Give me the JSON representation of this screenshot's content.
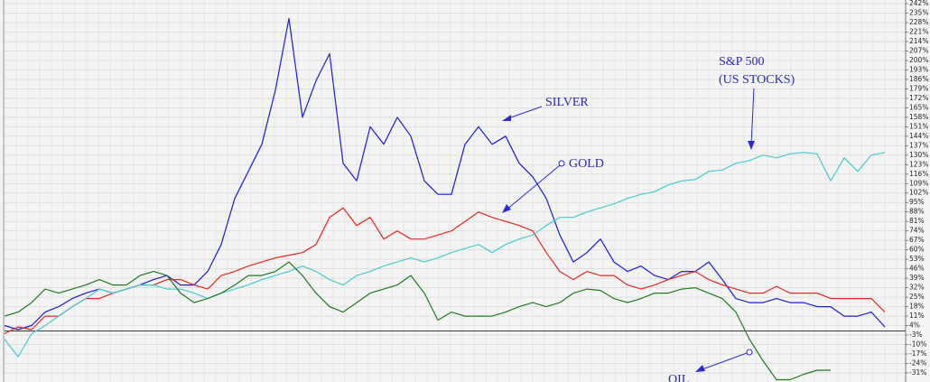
{
  "chart_data": {
    "type": "line",
    "categories": [
      null,
      null,
      null,
      null,
      null,
      null,
      null,
      null,
      null,
      null,
      null,
      null,
      null,
      null,
      null,
      null,
      null,
      null,
      null,
      null,
      null,
      null,
      null,
      null,
      null,
      null,
      null,
      null,
      null,
      null,
      null,
      null,
      null,
      null,
      null,
      null,
      null,
      null,
      null,
      null,
      null,
      null,
      null,
      null,
      null,
      null,
      null,
      null,
      null,
      null,
      null,
      null,
      null,
      null,
      null,
      null,
      null,
      null,
      null,
      null,
      null,
      null,
      null,
      null,
      null,
      null
    ],
    "series": [
      {
        "name": "SILVER",
        "color": "#1c1cd8",
        "values": [
          4,
          1,
          4,
          14,
          18,
          24,
          28,
          31,
          28,
          31,
          34,
          38,
          41,
          34,
          34,
          44,
          64,
          98,
          118,
          138,
          178,
          231,
          158,
          185,
          205,
          124,
          111,
          151,
          138,
          158,
          144,
          111,
          101,
          101,
          138,
          151,
          138,
          144,
          124,
          114,
          98,
          71,
          51,
          58,
          68,
          51,
          44,
          48,
          41,
          38,
          44,
          44,
          51,
          38,
          24,
          21,
          21,
          24,
          21,
          21,
          18,
          18,
          11,
          11,
          14,
          3
        ]
      },
      {
        "name": "GOLD",
        "color": "#e5281e",
        "values": [
          -2,
          3,
          1,
          11,
          11,
          18,
          24,
          24,
          28,
          31,
          34,
          34,
          38,
          38,
          34,
          31,
          41,
          44,
          48,
          51,
          54,
          56,
          58,
          64,
          84,
          91,
          78,
          84,
          68,
          74,
          68,
          68,
          71,
          74,
          81,
          88,
          84,
          81,
          78,
          74,
          58,
          44,
          38,
          44,
          41,
          41,
          34,
          31,
          34,
          38,
          41,
          44,
          38,
          34,
          31,
          28,
          28,
          33,
          28,
          28,
          28,
          24,
          24,
          24,
          24,
          14
        ]
      },
      {
        "name": "S&P 500",
        "color": "#46cccc",
        "values": [
          -6,
          -19,
          -2,
          4,
          11,
          18,
          24,
          31,
          28,
          31,
          34,
          34,
          31,
          31,
          28,
          24,
          28,
          31,
          34,
          38,
          41,
          44,
          48,
          44,
          38,
          34,
          41,
          44,
          48,
          51,
          54,
          51,
          54,
          58,
          61,
          64,
          58,
          64,
          68,
          71,
          78,
          84,
          84,
          88,
          91,
          94,
          98,
          101,
          103,
          108,
          111,
          112,
          118,
          119,
          124,
          126,
          130,
          128,
          131,
          132,
          131,
          111,
          128,
          118,
          130,
          132
        ]
      },
      {
        "name": "OIL",
        "color": "#1f7a1f",
        "values": [
          11,
          14,
          21,
          31,
          28,
          31,
          34,
          38,
          34,
          34,
          41,
          44,
          41,
          28,
          21,
          24,
          28,
          34,
          41,
          41,
          44,
          51,
          41,
          28,
          18,
          14,
          21,
          28,
          31,
          34,
          41,
          28,
          8,
          14,
          11,
          11,
          11,
          14,
          18,
          21,
          18,
          21,
          28,
          31,
          30,
          24,
          21,
          24,
          28,
          28,
          31,
          32,
          28,
          24,
          14,
          -6,
          -22,
          -36,
          -36,
          -32,
          -29,
          -29,
          null,
          null,
          null,
          null
        ]
      }
    ],
    "annotations": [
      "(US STOCKS)"
    ],
    "ylim": [
      -37.7,
      244.7
    ],
    "yticks": [
      {
        "value": 242,
        "label": "242%"
      },
      {
        "value": 235,
        "label": "235%"
      },
      {
        "value": 228,
        "label": "228%"
      },
      {
        "value": 221,
        "label": "221%"
      },
      {
        "value": 214,
        "label": "214%"
      },
      {
        "value": 207,
        "label": "207%"
      },
      {
        "value": 200,
        "label": "200%"
      },
      {
        "value": 193,
        "label": "193%"
      },
      {
        "value": 186,
        "label": "186%"
      },
      {
        "value": 179,
        "label": "179%"
      },
      {
        "value": 172,
        "label": "172%"
      },
      {
        "value": 165,
        "label": "165%"
      },
      {
        "value": 158,
        "label": "158%"
      },
      {
        "value": 151,
        "label": "151%"
      },
      {
        "value": 144,
        "label": "144%"
      },
      {
        "value": 137,
        "label": "137%"
      },
      {
        "value": 130,
        "label": "130%"
      },
      {
        "value": 123,
        "label": "123%"
      },
      {
        "value": 116,
        "label": "116%"
      },
      {
        "value": 109,
        "label": "109%"
      },
      {
        "value": 102,
        "label": "102%"
      },
      {
        "value": 95,
        "label": "95%"
      },
      {
        "value": 88,
        "label": "88%"
      },
      {
        "value": 81,
        "label": "81%"
      },
      {
        "value": 74,
        "label": "74%"
      },
      {
        "value": 67,
        "label": "67%"
      },
      {
        "value": 60,
        "label": "60%"
      },
      {
        "value": 53,
        "label": "53%"
      },
      {
        "value": 46,
        "label": "46%"
      },
      {
        "value": 39,
        "label": "39%"
      },
      {
        "value": 32,
        "label": "32%"
      },
      {
        "value": 25,
        "label": "25%"
      },
      {
        "value": 18,
        "label": "18%"
      },
      {
        "value": 11,
        "label": "11%"
      },
      {
        "value": 4,
        "label": "4%"
      },
      {
        "value": -3,
        "label": "-3%"
      },
      {
        "value": -10,
        "label": "-10%"
      },
      {
        "value": -17,
        "label": "-17%"
      },
      {
        "value": -24,
        "label": "-24%"
      },
      {
        "value": -31,
        "label": "-31%"
      }
    ],
    "grid": true
  }
}
